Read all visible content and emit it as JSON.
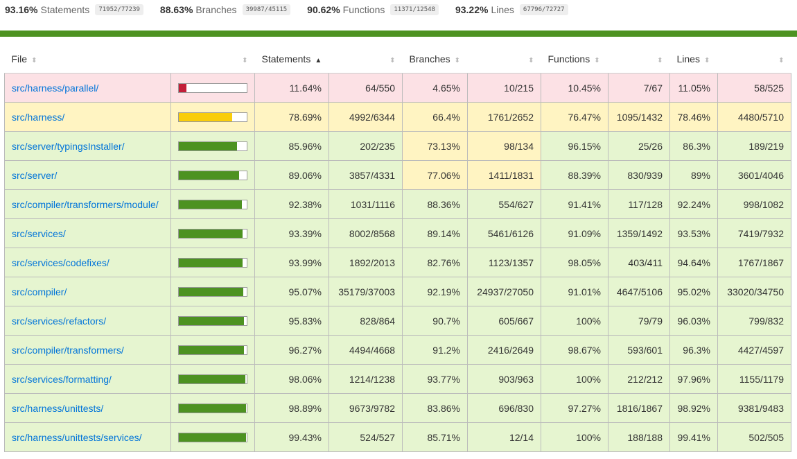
{
  "summary": [
    {
      "pct": "93.16%",
      "label": "Statements",
      "frac": "71952/77239"
    },
    {
      "pct": "88.63%",
      "label": "Branches",
      "frac": "39987/45115"
    },
    {
      "pct": "90.62%",
      "label": "Functions",
      "frac": "11371/12548"
    },
    {
      "pct": "93.22%",
      "label": "Lines",
      "frac": "67796/72727"
    }
  ],
  "headers": {
    "file": "File",
    "statements": "Statements",
    "branches": "Branches",
    "functions": "Functions",
    "lines": "Lines"
  },
  "colors": {
    "high_bg": "#e6f5d0",
    "medium_bg": "#fff4c2",
    "low_bg": "#fce1e5",
    "high_bar": "#4d9221",
    "medium_bar": "#f9cd0b",
    "low_bar": "#c21f39",
    "link": "#0074d9",
    "status_bar": "#4d9221"
  },
  "rows": [
    {
      "file": "src/harness/parallel/",
      "level": "low",
      "bar_pct": 11.64,
      "st_pct": "11.64%",
      "st_frac": "64/550",
      "st_lvl": "low",
      "br_pct": "4.65%",
      "br_frac": "10/215",
      "br_lvl": "low",
      "fn_pct": "10.45%",
      "fn_frac": "7/67",
      "fn_lvl": "low",
      "ln_pct": "11.05%",
      "ln_frac": "58/525",
      "ln_lvl": "low"
    },
    {
      "file": "src/harness/",
      "level": "medium",
      "bar_pct": 78.69,
      "st_pct": "78.69%",
      "st_frac": "4992/6344",
      "st_lvl": "medium",
      "br_pct": "66.4%",
      "br_frac": "1761/2652",
      "br_lvl": "medium",
      "fn_pct": "76.47%",
      "fn_frac": "1095/1432",
      "fn_lvl": "medium",
      "ln_pct": "78.46%",
      "ln_frac": "4480/5710",
      "ln_lvl": "medium"
    },
    {
      "file": "src/server/typingsInstaller/",
      "level": "high",
      "bar_pct": 85.96,
      "st_pct": "85.96%",
      "st_frac": "202/235",
      "st_lvl": "high",
      "br_pct": "73.13%",
      "br_frac": "98/134",
      "br_lvl": "medium",
      "fn_pct": "96.15%",
      "fn_frac": "25/26",
      "fn_lvl": "high",
      "ln_pct": "86.3%",
      "ln_frac": "189/219",
      "ln_lvl": "high"
    },
    {
      "file": "src/server/",
      "level": "high",
      "bar_pct": 89.06,
      "st_pct": "89.06%",
      "st_frac": "3857/4331",
      "st_lvl": "high",
      "br_pct": "77.06%",
      "br_frac": "1411/1831",
      "br_lvl": "medium",
      "fn_pct": "88.39%",
      "fn_frac": "830/939",
      "fn_lvl": "high",
      "ln_pct": "89%",
      "ln_frac": "3601/4046",
      "ln_lvl": "high"
    },
    {
      "file": "src/compiler/transformers/module/",
      "level": "high",
      "bar_pct": 92.38,
      "st_pct": "92.38%",
      "st_frac": "1031/1116",
      "st_lvl": "high",
      "br_pct": "88.36%",
      "br_frac": "554/627",
      "br_lvl": "high",
      "fn_pct": "91.41%",
      "fn_frac": "117/128",
      "fn_lvl": "high",
      "ln_pct": "92.24%",
      "ln_frac": "998/1082",
      "ln_lvl": "high"
    },
    {
      "file": "src/services/",
      "level": "high",
      "bar_pct": 93.39,
      "st_pct": "93.39%",
      "st_frac": "8002/8568",
      "st_lvl": "high",
      "br_pct": "89.14%",
      "br_frac": "5461/6126",
      "br_lvl": "high",
      "fn_pct": "91.09%",
      "fn_frac": "1359/1492",
      "fn_lvl": "high",
      "ln_pct": "93.53%",
      "ln_frac": "7419/7932",
      "ln_lvl": "high"
    },
    {
      "file": "src/services/codefixes/",
      "level": "high",
      "bar_pct": 93.99,
      "st_pct": "93.99%",
      "st_frac": "1892/2013",
      "st_lvl": "high",
      "br_pct": "82.76%",
      "br_frac": "1123/1357",
      "br_lvl": "high",
      "fn_pct": "98.05%",
      "fn_frac": "403/411",
      "fn_lvl": "high",
      "ln_pct": "94.64%",
      "ln_frac": "1767/1867",
      "ln_lvl": "high"
    },
    {
      "file": "src/compiler/",
      "level": "high",
      "bar_pct": 95.07,
      "st_pct": "95.07%",
      "st_frac": "35179/37003",
      "st_lvl": "high",
      "br_pct": "92.19%",
      "br_frac": "24937/27050",
      "br_lvl": "high",
      "fn_pct": "91.01%",
      "fn_frac": "4647/5106",
      "fn_lvl": "high",
      "ln_pct": "95.02%",
      "ln_frac": "33020/34750",
      "ln_lvl": "high"
    },
    {
      "file": "src/services/refactors/",
      "level": "high",
      "bar_pct": 95.83,
      "st_pct": "95.83%",
      "st_frac": "828/864",
      "st_lvl": "high",
      "br_pct": "90.7%",
      "br_frac": "605/667",
      "br_lvl": "high",
      "fn_pct": "100%",
      "fn_frac": "79/79",
      "fn_lvl": "high",
      "ln_pct": "96.03%",
      "ln_frac": "799/832",
      "ln_lvl": "high"
    },
    {
      "file": "src/compiler/transformers/",
      "level": "high",
      "bar_pct": 96.27,
      "st_pct": "96.27%",
      "st_frac": "4494/4668",
      "st_lvl": "high",
      "br_pct": "91.2%",
      "br_frac": "2416/2649",
      "br_lvl": "high",
      "fn_pct": "98.67%",
      "fn_frac": "593/601",
      "fn_lvl": "high",
      "ln_pct": "96.3%",
      "ln_frac": "4427/4597",
      "ln_lvl": "high"
    },
    {
      "file": "src/services/formatting/",
      "level": "high",
      "bar_pct": 98.06,
      "st_pct": "98.06%",
      "st_frac": "1214/1238",
      "st_lvl": "high",
      "br_pct": "93.77%",
      "br_frac": "903/963",
      "br_lvl": "high",
      "fn_pct": "100%",
      "fn_frac": "212/212",
      "fn_lvl": "high",
      "ln_pct": "97.96%",
      "ln_frac": "1155/1179",
      "ln_lvl": "high"
    },
    {
      "file": "src/harness/unittests/",
      "level": "high",
      "bar_pct": 98.89,
      "st_pct": "98.89%",
      "st_frac": "9673/9782",
      "st_lvl": "high",
      "br_pct": "83.86%",
      "br_frac": "696/830",
      "br_lvl": "high",
      "fn_pct": "97.27%",
      "fn_frac": "1816/1867",
      "fn_lvl": "high",
      "ln_pct": "98.92%",
      "ln_frac": "9381/9483",
      "ln_lvl": "high"
    },
    {
      "file": "src/harness/unittests/services/",
      "level": "high",
      "bar_pct": 99.43,
      "st_pct": "99.43%",
      "st_frac": "524/527",
      "st_lvl": "high",
      "br_pct": "85.71%",
      "br_frac": "12/14",
      "br_lvl": "high",
      "fn_pct": "100%",
      "fn_frac": "188/188",
      "fn_lvl": "high",
      "ln_pct": "99.41%",
      "ln_frac": "502/505",
      "ln_lvl": "high"
    }
  ]
}
